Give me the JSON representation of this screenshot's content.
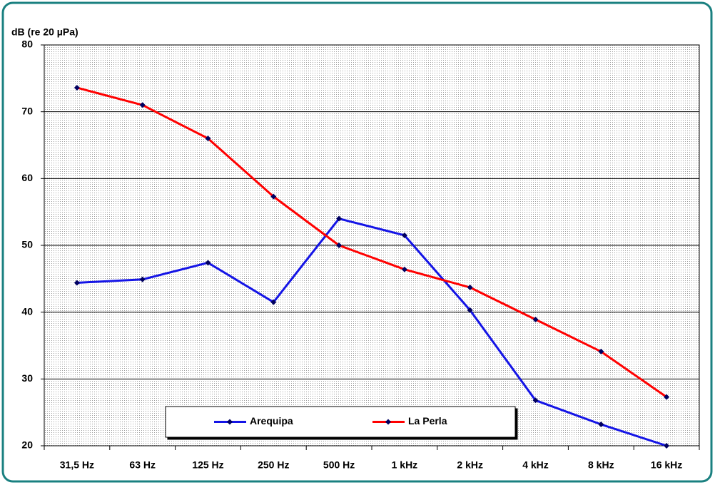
{
  "chart_data": {
    "type": "line",
    "y_axis_label": "dB (re 20 µPa)",
    "categories": [
      "31,5 Hz",
      "63 Hz",
      "125 Hz",
      "250 Hz",
      "500 Hz",
      "1 kHz",
      "2 kHz",
      "4 kHz",
      "8 kHz",
      "16 kHz"
    ],
    "series": [
      {
        "name": "Arequipa",
        "color": "#1414e6",
        "values": [
          44.4,
          44.9,
          47.4,
          41.5,
          54.0,
          51.5,
          40.3,
          26.8,
          23.2,
          20.0
        ]
      },
      {
        "name": "La Perla",
        "color": "#ff0000",
        "values": [
          73.6,
          71.0,
          66.0,
          57.3,
          50.0,
          46.4,
          43.7,
          38.9,
          34.1,
          27.3
        ]
      }
    ],
    "marker_color": "#000060",
    "ylim": [
      20,
      80
    ],
    "yticks": [
      20,
      30,
      40,
      50,
      60,
      70,
      80
    ],
    "grid": true,
    "legend": "bottom"
  }
}
